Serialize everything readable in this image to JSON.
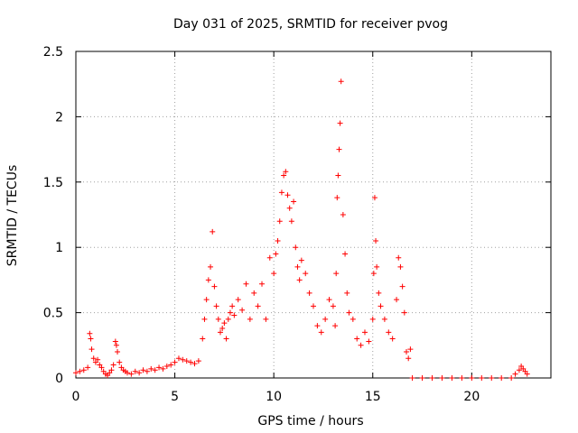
{
  "chart_data": {
    "type": "scatter",
    "title": "Day 031 of 2025, SRMTID for receiver pvog",
    "xlabel": "GPS time / hours",
    "ylabel": "SRMTID / TECUs",
    "xlim": [
      0,
      24
    ],
    "ylim": [
      0,
      2.5
    ],
    "xticks": [
      0,
      5,
      10,
      15,
      20
    ],
    "xtick_labels": [
      "0",
      "5",
      "10",
      "15",
      "20"
    ],
    "yticks": [
      0,
      0.5,
      1,
      1.5,
      2,
      2.5
    ],
    "ytick_labels": [
      "0",
      "0.5",
      "1",
      "1.5",
      "2",
      "2.5"
    ],
    "grid": true,
    "marker": "+",
    "series": [
      {
        "name": "SRMTID",
        "color": "#ff0000",
        "x": [
          0.0,
          0.2,
          0.4,
          0.6,
          0.7,
          0.75,
          0.8,
          0.9,
          1.0,
          1.1,
          1.2,
          1.3,
          1.4,
          1.5,
          1.6,
          1.7,
          1.8,
          1.9,
          2.0,
          2.05,
          2.1,
          2.2,
          2.3,
          2.4,
          2.5,
          2.6,
          2.8,
          3.0,
          3.2,
          3.4,
          3.6,
          3.8,
          4.0,
          4.2,
          4.4,
          4.6,
          4.8,
          5.0,
          5.2,
          5.4,
          5.6,
          5.8,
          6.0,
          6.2,
          6.4,
          6.5,
          6.6,
          6.7,
          6.8,
          6.9,
          7.0,
          7.1,
          7.2,
          7.3,
          7.4,
          7.5,
          7.6,
          7.7,
          7.8,
          7.9,
          8.0,
          8.2,
          8.4,
          8.6,
          8.8,
          9.0,
          9.2,
          9.4,
          9.6,
          9.8,
          10.0,
          10.1,
          10.2,
          10.3,
          10.4,
          10.5,
          10.6,
          10.7,
          10.8,
          10.9,
          11.0,
          11.1,
          11.2,
          11.3,
          11.4,
          11.6,
          11.8,
          12.0,
          12.2,
          12.4,
          12.6,
          12.8,
          13.0,
          13.1,
          13.15,
          13.2,
          13.25,
          13.3,
          13.35,
          13.4,
          13.5,
          13.6,
          13.7,
          13.8,
          14.0,
          14.2,
          14.4,
          14.6,
          14.8,
          15.0,
          15.05,
          15.1,
          15.15,
          15.2,
          15.3,
          15.4,
          15.6,
          15.8,
          16.0,
          16.2,
          16.3,
          16.4,
          16.5,
          16.6,
          16.7,
          16.8,
          16.9,
          17.0,
          17.5,
          18.0,
          18.5,
          19.0,
          19.5,
          20.0,
          20.5,
          21.0,
          21.5,
          22.0,
          22.2,
          22.4,
          22.5,
          22.6,
          22.7,
          22.8
        ],
        "values": [
          0.04,
          0.05,
          0.06,
          0.08,
          0.34,
          0.3,
          0.22,
          0.15,
          0.12,
          0.14,
          0.1,
          0.08,
          0.05,
          0.03,
          0.02,
          0.04,
          0.06,
          0.1,
          0.28,
          0.25,
          0.2,
          0.12,
          0.08,
          0.06,
          0.05,
          0.04,
          0.03,
          0.05,
          0.04,
          0.06,
          0.05,
          0.07,
          0.06,
          0.08,
          0.07,
          0.09,
          0.1,
          0.12,
          0.15,
          0.14,
          0.13,
          0.12,
          0.11,
          0.13,
          0.3,
          0.45,
          0.6,
          0.75,
          0.85,
          1.12,
          0.7,
          0.55,
          0.45,
          0.35,
          0.38,
          0.42,
          0.3,
          0.45,
          0.5,
          0.55,
          0.48,
          0.6,
          0.52,
          0.72,
          0.45,
          0.65,
          0.55,
          0.72,
          0.45,
          0.92,
          0.8,
          0.95,
          1.05,
          1.2,
          1.42,
          1.55,
          1.58,
          1.4,
          1.3,
          1.2,
          1.35,
          1.0,
          0.85,
          0.75,
          0.9,
          0.8,
          0.65,
          0.55,
          0.4,
          0.35,
          0.45,
          0.6,
          0.55,
          0.4,
          0.8,
          1.38,
          1.55,
          1.75,
          1.95,
          2.27,
          1.25,
          0.95,
          0.65,
          0.5,
          0.45,
          0.3,
          0.25,
          0.35,
          0.28,
          0.45,
          0.8,
          1.38,
          1.05,
          0.85,
          0.65,
          0.55,
          0.45,
          0.35,
          0.3,
          0.6,
          0.92,
          0.85,
          0.7,
          0.5,
          0.2,
          0.15,
          0.22,
          0.0,
          0.0,
          0.0,
          0.0,
          0.0,
          0.0,
          0.0,
          0.0,
          0.0,
          0.0,
          0.0,
          0.03,
          0.06,
          0.09,
          0.07,
          0.05,
          0.03
        ]
      }
    ]
  }
}
